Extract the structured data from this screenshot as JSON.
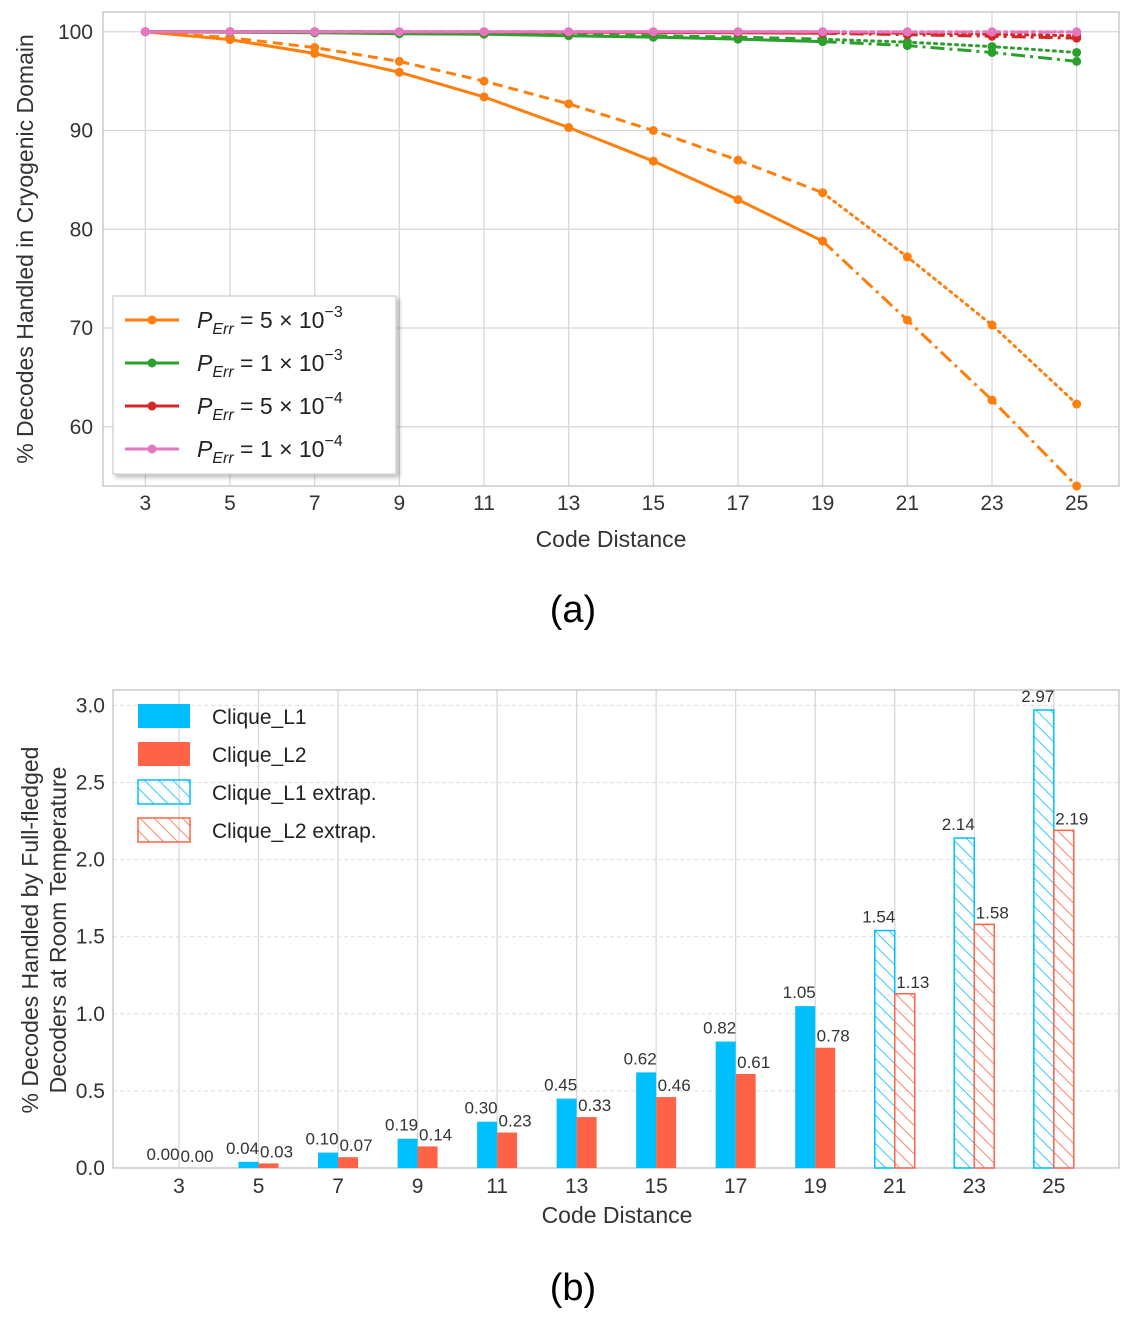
{
  "chart_data": [
    {
      "type": "line",
      "panel_label": "(a)",
      "title": "",
      "xlabel": "Code Distance",
      "ylabel": "% Decodes Handled in Cryogenic Domain",
      "x": [
        3,
        5,
        7,
        9,
        11,
        13,
        15,
        17,
        19,
        21,
        23,
        25
      ],
      "xlim": [
        2,
        26
      ],
      "ylim": [
        54,
        102
      ],
      "yticks": [
        60,
        70,
        80,
        90,
        100
      ],
      "grid": true,
      "legend_position": "lower-left",
      "series": [
        {
          "name": "P_Err = 5 × 10^-3",
          "legend_base": "5",
          "legend_exp": "−3",
          "color": "#ff7f0e",
          "measured": [
            100.0,
            99.2,
            97.8,
            95.9,
            93.4,
            90.3,
            86.9,
            83.0,
            78.8
          ],
          "extrapolated": [
            70.8,
            62.7,
            54.0
          ],
          "upper_measured": [
            100.0,
            99.4,
            98.4,
            97.0,
            95.0,
            92.7,
            90.0,
            87.0,
            83.7
          ],
          "upper_extrapolated": [
            77.2,
            70.3,
            62.3
          ]
        },
        {
          "name": "P_Err = 1 × 10^-3",
          "legend_base": "1",
          "legend_exp": "−3",
          "color": "#2ca02c",
          "measured": [
            100.0,
            99.95,
            99.9,
            99.8,
            99.75,
            99.6,
            99.45,
            99.25,
            99.0
          ],
          "extrapolated": [
            98.6,
            97.9,
            97.0
          ],
          "upper_measured": [
            100.0,
            99.98,
            99.95,
            99.9,
            99.85,
            99.75,
            99.6,
            99.45,
            99.25
          ],
          "upper_extrapolated": [
            98.95,
            98.5,
            97.9
          ]
        },
        {
          "name": "P_Err = 5 × 10^-4",
          "legend_base": "5",
          "legend_exp": "−4",
          "color": "#d62728",
          "measured": [
            100.0,
            100.0,
            100.0,
            99.98,
            99.97,
            99.95,
            99.93,
            99.9,
            99.85
          ],
          "extrapolated": [
            99.7,
            99.55,
            99.35
          ],
          "upper_measured": [
            100.0,
            100.0,
            100.0,
            99.99,
            99.98,
            99.97,
            99.96,
            99.94,
            99.9
          ],
          "upper_extrapolated": [
            99.85,
            99.75,
            99.6
          ]
        },
        {
          "name": "P_Err = 1 × 10^-4",
          "legend_base": "1",
          "legend_exp": "−4",
          "color": "#e377c2",
          "measured": [
            100.0,
            100.0,
            100.0,
            100.0,
            100.0,
            100.0,
            100.0,
            100.0,
            100.0
          ],
          "extrapolated": [
            99.98,
            99.97,
            99.96
          ],
          "upper_measured": [
            100.0,
            100.0,
            100.0,
            100.0,
            100.0,
            100.0,
            100.0,
            100.0,
            100.0
          ],
          "upper_extrapolated": [
            100.0,
            100.0,
            100.0
          ]
        }
      ],
      "legend_prefix": "P",
      "legend_subscript": "Err",
      "legend_middle": " = ",
      "legend_times": " × 10"
    },
    {
      "type": "bar",
      "panel_label": "(b)",
      "title": "",
      "xlabel": "Code Distance",
      "ylabel_line1": "% Decodes Handled by Full-fledged",
      "ylabel_line2": "Decoders at Room Temperature",
      "categories": [
        "3",
        "5",
        "7",
        "9",
        "11",
        "13",
        "15",
        "17",
        "19",
        "21",
        "23",
        "25"
      ],
      "ylim": [
        0,
        3.1
      ],
      "yticks": [
        "0.0",
        "0.5",
        "1.0",
        "1.5",
        "2.0",
        "2.5",
        "3.0"
      ],
      "grid": true,
      "legend_position": "top-left",
      "series": [
        {
          "name": "Clique_L1",
          "color": "#00bfff",
          "values": [
            0.0,
            0.04,
            0.1,
            0.19,
            0.3,
            0.45,
            0.62,
            0.82,
            1.05,
            1.54,
            2.14,
            2.97
          ],
          "labels": [
            "0.00",
            "0.04",
            "0.10",
            "0.19",
            "0.30",
            "0.45",
            "0.62",
            "0.82",
            "1.05",
            "1.54",
            "2.14",
            "2.97"
          ]
        },
        {
          "name": "Clique_L2",
          "color": "#ff6347",
          "values": [
            0.0,
            0.03,
            0.07,
            0.14,
            0.23,
            0.33,
            0.46,
            0.61,
            0.78,
            1.13,
            1.58,
            2.19
          ],
          "labels": [
            "0.00",
            "0.03",
            "0.07",
            "0.14",
            "0.23",
            "0.33",
            "0.46",
            "0.61",
            "0.78",
            "1.13",
            "1.58",
            "2.19"
          ]
        }
      ],
      "extrapolated_from_index": 9,
      "legend": [
        "Clique_L1",
        "Clique_L2",
        "Clique_L1 extrap.",
        "Clique_L2 extrap."
      ]
    }
  ]
}
